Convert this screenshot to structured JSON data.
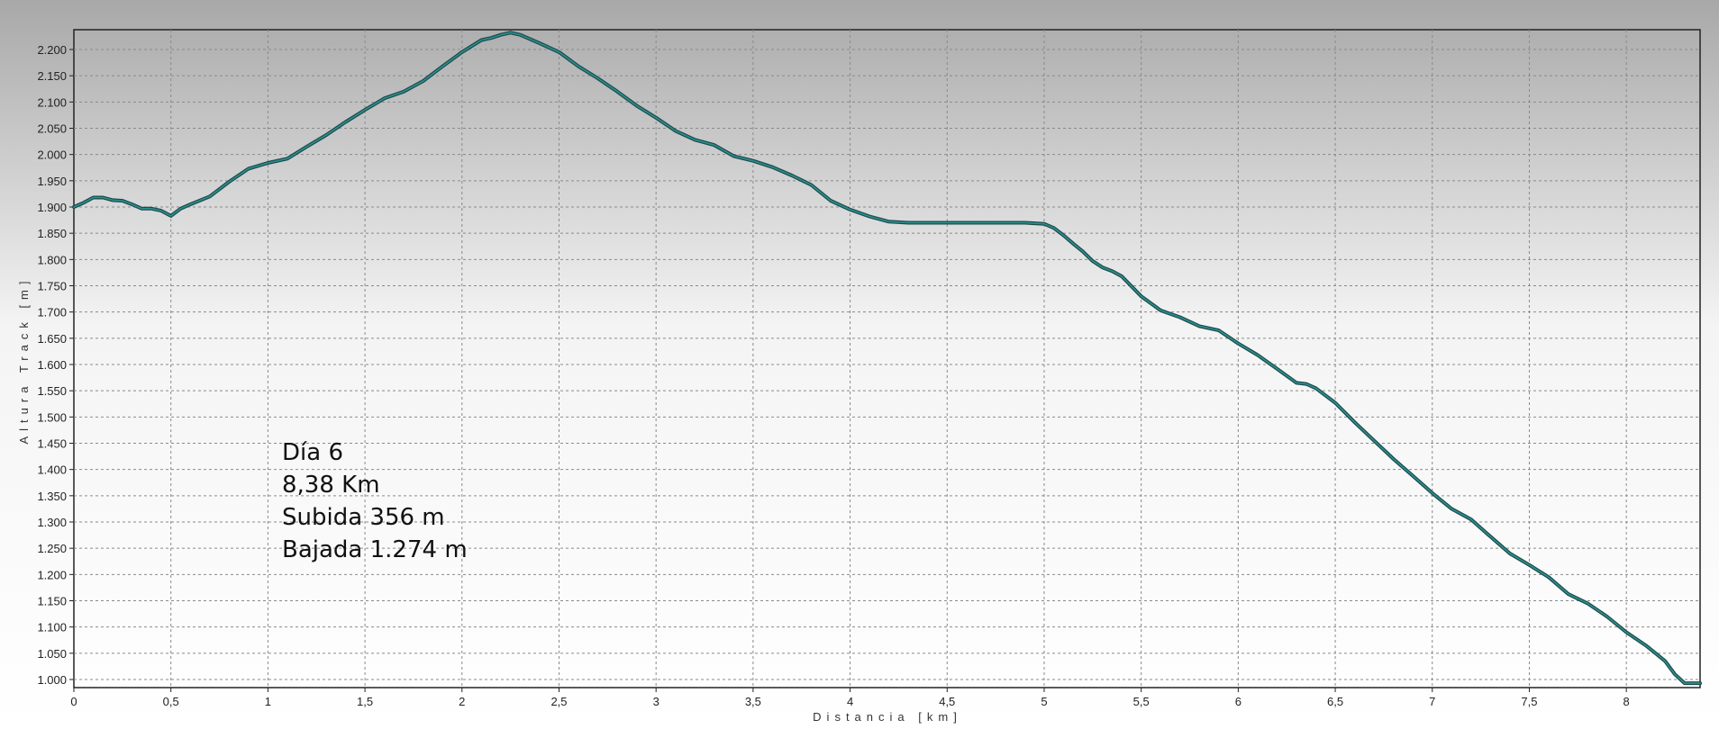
{
  "chart_data": {
    "type": "line",
    "title": "",
    "xlabel": "Distancia [km]",
    "ylabel": "Altura Track [m]",
    "xlim": [
      0,
      8.38
    ],
    "ylim": [
      990,
      2230
    ],
    "x_ticks": [
      0,
      0.5,
      1,
      1.5,
      2,
      2.5,
      3,
      3.5,
      4,
      4.5,
      5,
      5.5,
      6,
      6.5,
      7,
      7.5,
      8
    ],
    "x_tick_labels": [
      "0",
      "0,5",
      "1",
      "1,5",
      "2",
      "2,5",
      "3",
      "3,5",
      "4",
      "4,5",
      "5",
      "5,5",
      "6",
      "6,5",
      "7",
      "7,5",
      "8"
    ],
    "y_ticks": [
      1000,
      1050,
      1100,
      1150,
      1200,
      1250,
      1300,
      1350,
      1400,
      1450,
      1500,
      1550,
      1600,
      1650,
      1700,
      1750,
      1800,
      1850,
      1900,
      1950,
      2000,
      2050,
      2100,
      2150,
      2200
    ],
    "y_tick_labels": [
      "1.000",
      "1.050",
      "1.100",
      "1.150",
      "1.200",
      "1.250",
      "1.300",
      "1.350",
      "1.400",
      "1.450",
      "1.500",
      "1.550",
      "1.600",
      "1.650",
      "1.700",
      "1.750",
      "1.800",
      "1.850",
      "1.900",
      "1.950",
      "2.000",
      "2.050",
      "2.100",
      "2.150",
      "2.200"
    ],
    "grid": true,
    "line_color": "#1a4a4a",
    "series": [
      {
        "x": [
          0,
          0.05,
          0.1,
          0.15,
          0.2,
          0.25,
          0.3,
          0.35,
          0.4,
          0.45,
          0.5,
          0.55,
          0.6,
          0.7,
          0.8,
          0.9,
          1.0,
          1.1,
          1.2,
          1.3,
          1.4,
          1.5,
          1.6,
          1.7,
          1.8,
          1.9,
          2.0,
          2.1,
          2.15,
          2.2,
          2.25,
          2.3,
          2.4,
          2.5,
          2.6,
          2.7,
          2.8,
          2.9,
          3.0,
          3.1,
          3.2,
          3.3,
          3.4,
          3.5,
          3.6,
          3.7,
          3.8,
          3.9,
          4.0,
          4.1,
          4.2,
          4.3,
          4.5,
          4.7,
          4.9,
          5.0,
          5.05,
          5.1,
          5.15,
          5.2,
          5.25,
          5.3,
          5.35,
          5.4,
          5.5,
          5.6,
          5.7,
          5.8,
          5.9,
          6.0,
          6.1,
          6.2,
          6.3,
          6.35,
          6.4,
          6.5,
          6.6,
          6.7,
          6.8,
          6.9,
          7.0,
          7.1,
          7.2,
          7.3,
          7.4,
          7.5,
          7.6,
          7.7,
          7.8,
          7.9,
          8.0,
          8.1,
          8.15,
          8.2,
          8.25,
          8.3,
          8.38
        ],
        "y": [
          1900,
          1908,
          1918,
          1918,
          1913,
          1912,
          1905,
          1897,
          1897,
          1893,
          1883,
          1897,
          1905,
          1920,
          1948,
          1973,
          1984,
          1992,
          2015,
          2037,
          2062,
          2085,
          2107,
          2120,
          2140,
          2168,
          2195,
          2218,
          2222,
          2228,
          2232,
          2228,
          2212,
          2195,
          2168,
          2145,
          2120,
          2093,
          2070,
          2045,
          2028,
          2018,
          1997,
          1988,
          1976,
          1960,
          1942,
          1912,
          1895,
          1882,
          1872,
          1870,
          1870,
          1870,
          1870,
          1868,
          1860,
          1846,
          1830,
          1815,
          1797,
          1785,
          1778,
          1768,
          1730,
          1703,
          1690,
          1673,
          1665,
          1640,
          1618,
          1592,
          1565,
          1563,
          1555,
          1527,
          1490,
          1455,
          1420,
          1388,
          1355,
          1325,
          1305,
          1272,
          1240,
          1218,
          1195,
          1163,
          1145,
          1120,
          1090,
          1065,
          1050,
          1035,
          1010,
          993,
          993
        ]
      }
    ]
  },
  "annotation": {
    "lines": [
      "Día 6",
      "8,38 Km",
      "Subida 356 m",
      "Bajada 1.274 m"
    ]
  }
}
